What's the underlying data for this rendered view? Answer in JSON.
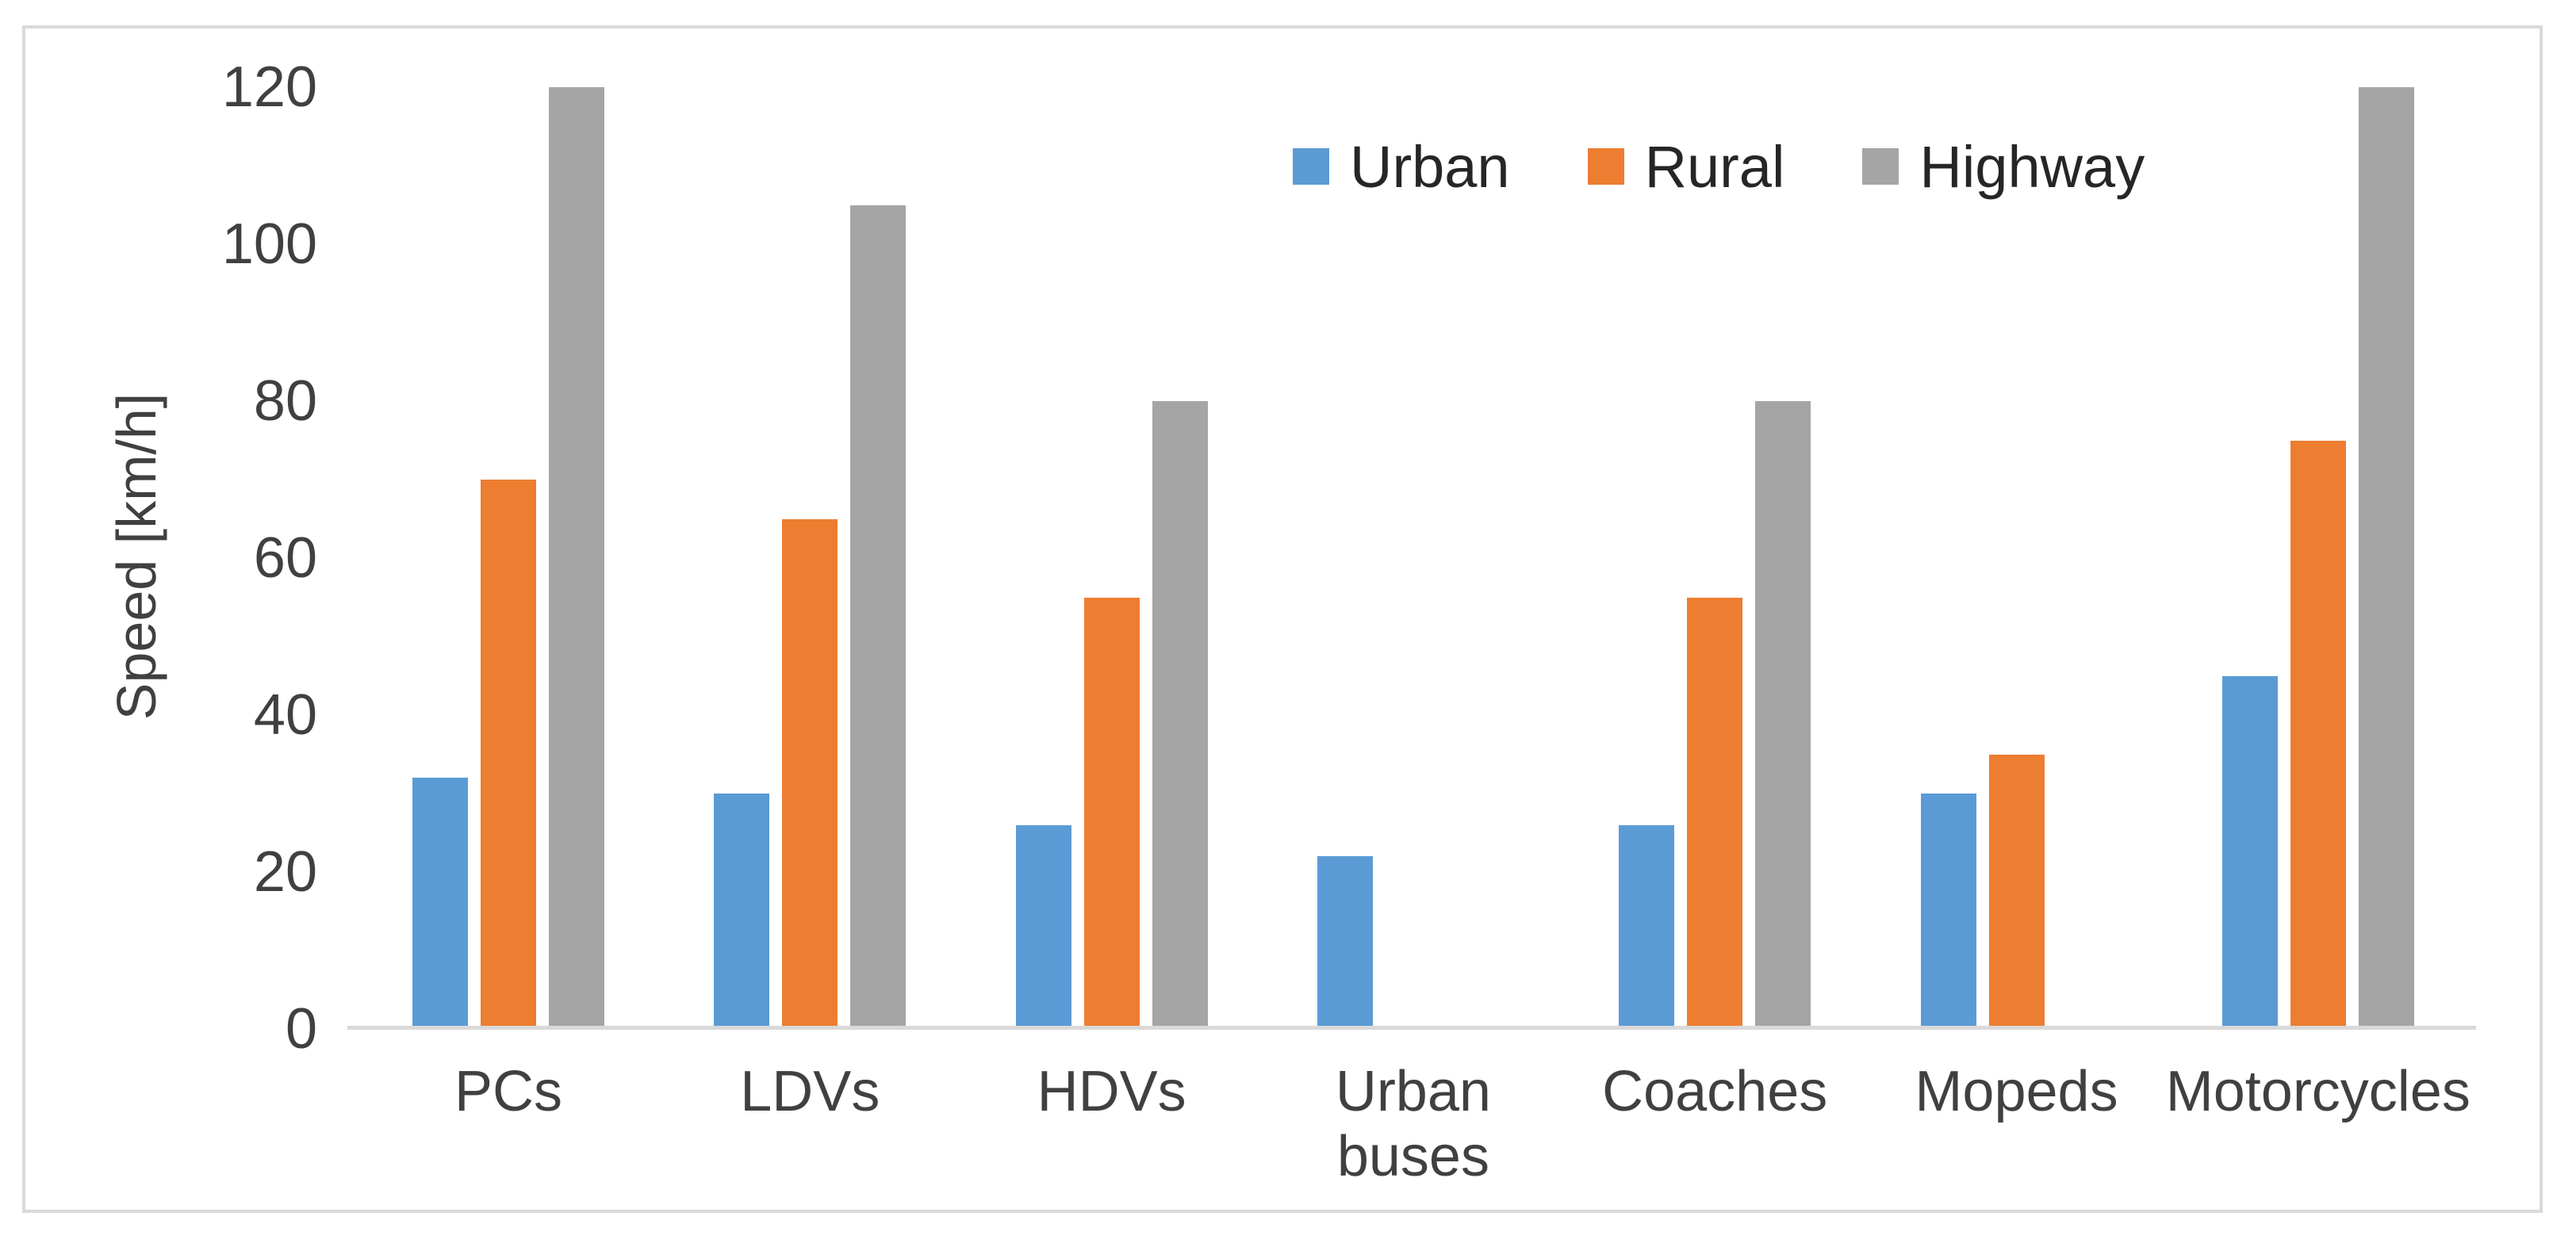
{
  "chart_data": {
    "type": "bar",
    "title": "",
    "xlabel": "",
    "ylabel": "Speed [km/h]",
    "ylim": [
      0,
      120
    ],
    "yticks": [
      0,
      20,
      40,
      60,
      80,
      100,
      120
    ],
    "grid": false,
    "legend_position": "top-center-inside",
    "categories": [
      "PCs",
      "LDVs",
      "HDVs",
      "Urban\nbuses",
      "Coaches",
      "Mopeds",
      "Motorcycles"
    ],
    "series": [
      {
        "name": "Urban",
        "color": "#5B9BD5",
        "values": [
          32,
          30,
          26,
          22,
          26,
          30,
          45
        ]
      },
      {
        "name": "Rural",
        "color": "#ED7D31",
        "values": [
          70,
          65,
          55,
          0,
          55,
          35,
          75
        ]
      },
      {
        "name": "Highway",
        "color": "#A5A5A5",
        "values": [
          120,
          105,
          80,
          0,
          80,
          0,
          120
        ]
      }
    ]
  },
  "style_colors": {
    "frame_border": "#D9D9D9",
    "axis_line": "#D9D9D9",
    "text": "#404040",
    "background": "#FFFFFF"
  }
}
